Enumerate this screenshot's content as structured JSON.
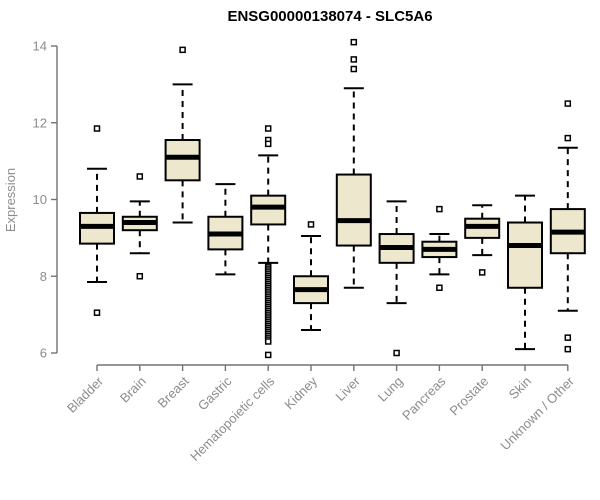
{
  "chart_data": {
    "type": "box",
    "title": "ENSG00000138074 - SLC5A6",
    "ylabel": "Expression",
    "xlabel": "",
    "ylim": [
      6,
      14
    ],
    "yticks": [
      6,
      8,
      10,
      12,
      14
    ],
    "grid": false,
    "legend": "none",
    "categories": [
      "Bladder",
      "Brain",
      "Breast",
      "Gastric",
      "Hematopoietic cells",
      "Kidney",
      "Liver",
      "Lung",
      "Pancreas",
      "Prostate",
      "Skin",
      "Unknown / Other"
    ],
    "boxes": [
      {
        "category": "Bladder",
        "whisker_low": 7.85,
        "q1": 8.85,
        "median": 9.3,
        "q3": 9.65,
        "whisker_high": 10.8,
        "outliers": [
          11.85,
          7.05
        ]
      },
      {
        "category": "Brain",
        "whisker_low": 8.6,
        "q1": 9.2,
        "median": 9.4,
        "q3": 9.55,
        "whisker_high": 9.95,
        "outliers": [
          10.6,
          8.0
        ]
      },
      {
        "category": "Breast",
        "whisker_low": 9.4,
        "q1": 10.5,
        "median": 11.1,
        "q3": 11.55,
        "whisker_high": 13.0,
        "outliers": [
          13.9
        ]
      },
      {
        "category": "Gastric",
        "whisker_low": 8.05,
        "q1": 8.7,
        "median": 9.1,
        "q3": 9.55,
        "whisker_high": 10.4,
        "outliers": []
      },
      {
        "category": "Hematopoietic cells",
        "whisker_low": 8.35,
        "q1": 9.35,
        "median": 9.8,
        "q3": 10.1,
        "whisker_high": 11.15,
        "outliers": [
          11.85,
          11.55,
          11.45,
          8.25,
          8.2,
          8.15,
          8.1,
          8.05,
          8.0,
          7.95,
          7.9,
          7.85,
          7.8,
          7.75,
          7.7,
          7.65,
          7.6,
          7.55,
          7.5,
          7.45,
          7.4,
          7.35,
          7.3,
          7.25,
          7.2,
          7.15,
          7.1,
          7.05,
          7.0,
          6.95,
          6.9,
          6.85,
          6.8,
          6.75,
          6.7,
          6.65,
          6.6,
          6.55,
          6.5,
          6.45,
          6.4,
          6.35,
          6.3,
          5.95
        ]
      },
      {
        "category": "Kidney",
        "whisker_low": 6.6,
        "q1": 7.3,
        "median": 7.65,
        "q3": 8.0,
        "whisker_high": 9.05,
        "outliers": [
          9.35
        ]
      },
      {
        "category": "Liver",
        "whisker_low": 7.7,
        "q1": 8.8,
        "median": 9.45,
        "q3": 10.65,
        "whisker_high": 12.9,
        "outliers": [
          14.1,
          13.65,
          13.4
        ]
      },
      {
        "category": "Lung",
        "whisker_low": 7.3,
        "q1": 8.35,
        "median": 8.75,
        "q3": 9.1,
        "whisker_high": 9.95,
        "outliers": [
          6.0
        ]
      },
      {
        "category": "Pancreas",
        "whisker_low": 8.05,
        "q1": 8.5,
        "median": 8.7,
        "q3": 8.9,
        "whisker_high": 9.1,
        "outliers": [
          9.75,
          7.7
        ]
      },
      {
        "category": "Prostate",
        "whisker_low": 8.55,
        "q1": 9.0,
        "median": 9.3,
        "q3": 9.5,
        "whisker_high": 9.85,
        "outliers": [
          8.1
        ]
      },
      {
        "category": "Skin",
        "whisker_low": 6.1,
        "q1": 7.7,
        "median": 8.8,
        "q3": 9.4,
        "whisker_high": 10.1,
        "outliers": []
      },
      {
        "category": "Unknown / Other",
        "whisker_low": 7.1,
        "q1": 8.6,
        "median": 9.15,
        "q3": 9.75,
        "whisker_high": 11.35,
        "outliers": [
          12.5,
          11.6,
          6.4,
          6.1
        ]
      }
    ],
    "colors": {
      "box_fill": "#EDE8CD",
      "box_stroke": "#000000",
      "median": "#000000",
      "whisker": "#000000",
      "outlier_stroke": "#000000",
      "outlier_fill": "#FFFFFF",
      "axis": "#737373",
      "tick_text": "#8C8C8C",
      "title": "#000000",
      "background": "#FFFFFF"
    }
  }
}
